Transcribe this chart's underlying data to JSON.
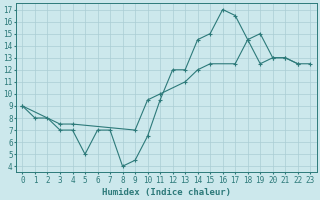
{
  "xlabel": "Humidex (Indice chaleur)",
  "bg_color": "#cce8ec",
  "grid_color": "#aacdd4",
  "line_color": "#2d7a7a",
  "xlim": [
    -0.5,
    23.5
  ],
  "ylim": [
    3.5,
    17.5
  ],
  "yticks": [
    4,
    5,
    6,
    7,
    8,
    9,
    10,
    11,
    12,
    13,
    14,
    15,
    16,
    17
  ],
  "xticks": [
    0,
    1,
    2,
    3,
    4,
    5,
    6,
    7,
    8,
    9,
    10,
    11,
    12,
    13,
    14,
    15,
    16,
    17,
    18,
    19,
    20,
    21,
    22,
    23
  ],
  "line1_x": [
    0,
    1,
    2,
    3,
    4,
    5,
    6,
    7,
    8,
    9,
    10,
    11,
    12,
    13,
    14,
    15,
    16,
    17,
    18,
    19,
    20,
    21,
    22
  ],
  "line1_y": [
    9,
    8,
    8,
    7,
    7,
    5,
    7,
    7,
    4,
    4.5,
    6.5,
    9.5,
    12,
    12,
    14.5,
    15,
    17,
    16.5,
    14.5,
    15,
    13,
    13,
    12.5
  ],
  "line2_x": [
    0,
    3,
    4,
    9,
    10,
    11,
    13,
    14,
    15,
    17,
    18,
    19,
    20,
    21,
    22,
    23
  ],
  "line2_y": [
    9,
    7.5,
    7.5,
    7,
    9.5,
    10,
    11,
    12,
    12.5,
    12.5,
    14.5,
    12.5,
    13,
    13,
    12.5,
    12.5
  ]
}
